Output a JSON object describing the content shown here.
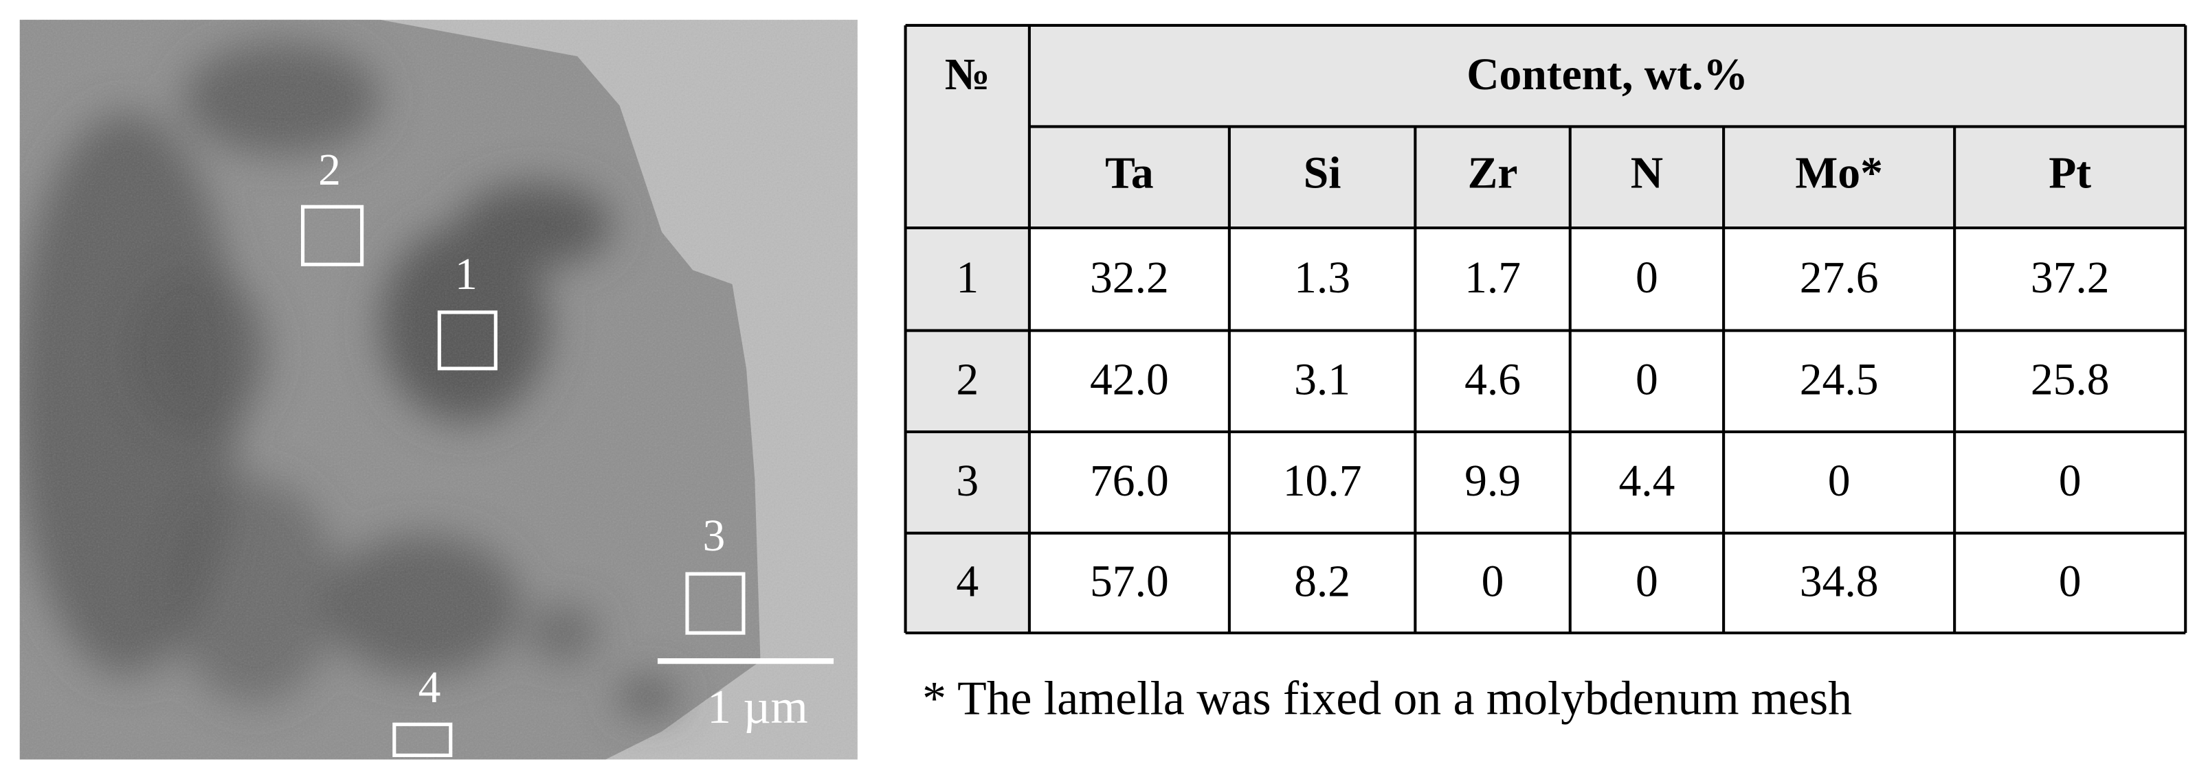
{
  "micrograph": {
    "regions": [
      "1",
      "2",
      "3",
      "4"
    ],
    "scale_bar": "1 µm"
  },
  "table": {
    "number_header": "№",
    "group_header": "Content, wt.%",
    "columns": [
      "Ta",
      "Si",
      "Zr",
      "N",
      "Mo*",
      "Pt"
    ],
    "rows": [
      [
        "1",
        "32.2",
        "1.3",
        "1.7",
        "0",
        "27.6",
        "37.2"
      ],
      [
        "2",
        "42.0",
        "3.1",
        "4.6",
        "0",
        "24.5",
        "25.8"
      ],
      [
        "3",
        "76.0",
        "10.7",
        "9.9",
        "4.4",
        "0",
        "0"
      ],
      [
        "4",
        "57.0",
        "8.2",
        "0",
        "0",
        "34.8",
        "0"
      ]
    ]
  },
  "footnote": "* The lamella was fixed on a molybdenum mesh"
}
